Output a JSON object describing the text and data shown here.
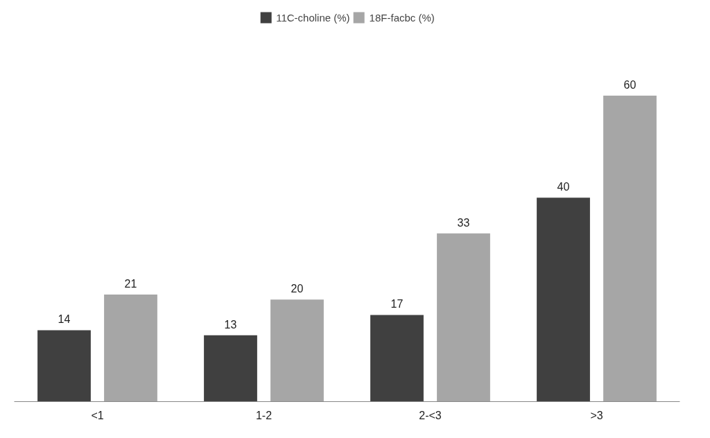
{
  "chart_data": {
    "type": "bar",
    "categories": [
      "<1",
      "1-2",
      "2-<3",
      ">3"
    ],
    "series": [
      {
        "name": "11C-choline (%)",
        "color": "#404040",
        "values": [
          14,
          13,
          17,
          40
        ]
      },
      {
        "name": "18F-facbc (%)",
        "color": "#a6a6a6",
        "values": [
          21,
          20,
          33,
          60
        ]
      }
    ],
    "data_labels": true,
    "legend": "top",
    "grid": false
  }
}
